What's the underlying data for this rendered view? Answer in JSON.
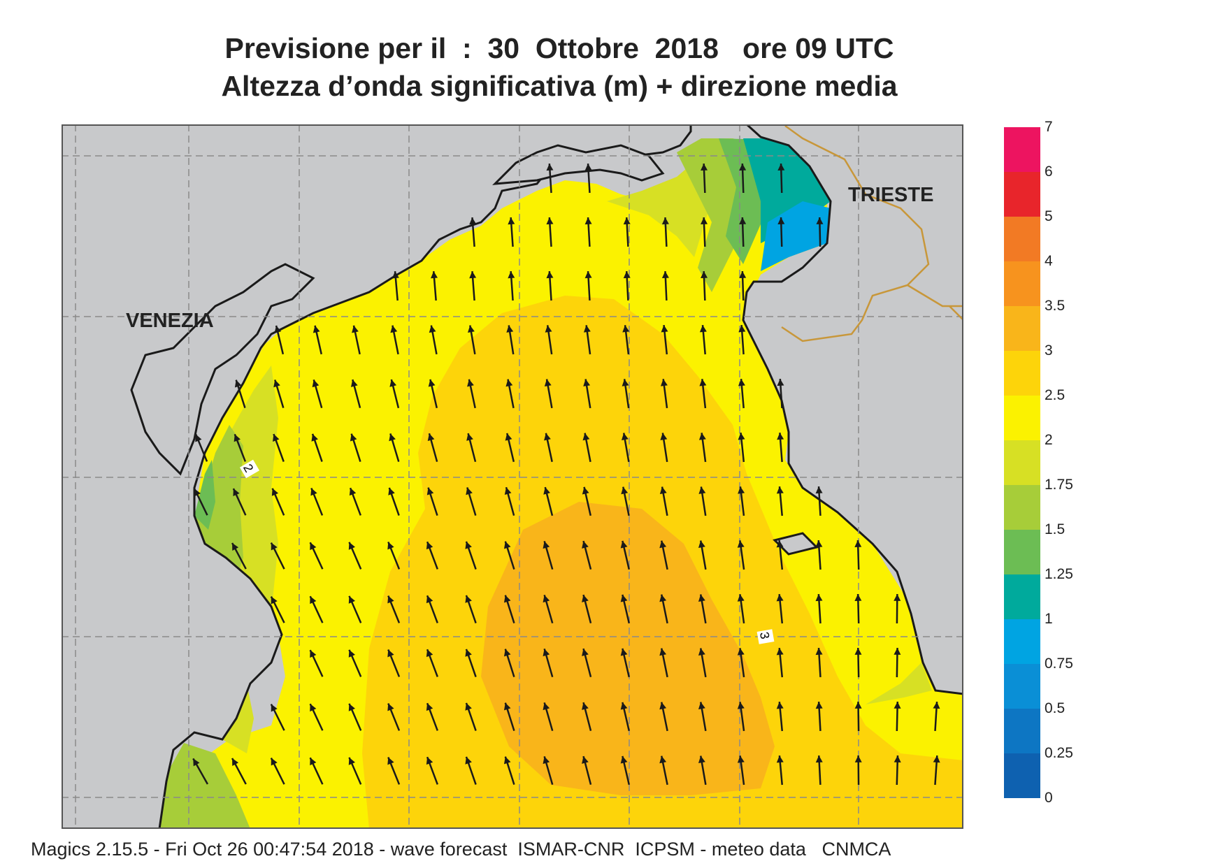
{
  "title": {
    "line1": "Previsione per il  :  30  Ottobre  2018   ore 09 UTC",
    "line2": "Altezza d’onda significativa (m) + direzione media"
  },
  "map": {
    "cities": [
      "VENEZIA",
      "TRIESTE"
    ],
    "contour_labels": [
      "2",
      "3"
    ],
    "colors": {
      "land": "#c8c9cb",
      "coast": "#1a1a1a",
      "border": "#c8973a",
      "grid": "#8a8a8a",
      "arrow": "#1a1a1a"
    },
    "wave_arrows": "mean wave direction arrows (mostly toward north / north-west)"
  },
  "legend": {
    "ticks": [
      "7",
      "6",
      "5",
      "4",
      "3.5",
      "3",
      "2.5",
      "2",
      "1.75",
      "1.5",
      "1.25",
      "1",
      "0.75",
      "0.5",
      "0.25",
      "0"
    ],
    "colors": [
      "#ed1460",
      "#e8252b",
      "#f27a24",
      "#f7931e",
      "#f9b51a",
      "#fdd40a",
      "#fbf200",
      "#d7e024",
      "#a7cd39",
      "#6cbd54",
      "#00aa9c",
      "#00a4e2",
      "#0a8fd6",
      "#0d76c3",
      "#0e61b0"
    ]
  },
  "footer": "Magics 2.15.5 - Fri Oct 26 00:47:54 2018 - wave forecast  ISMAR-CNR  ICPSM - meteo data   CNMCA"
}
